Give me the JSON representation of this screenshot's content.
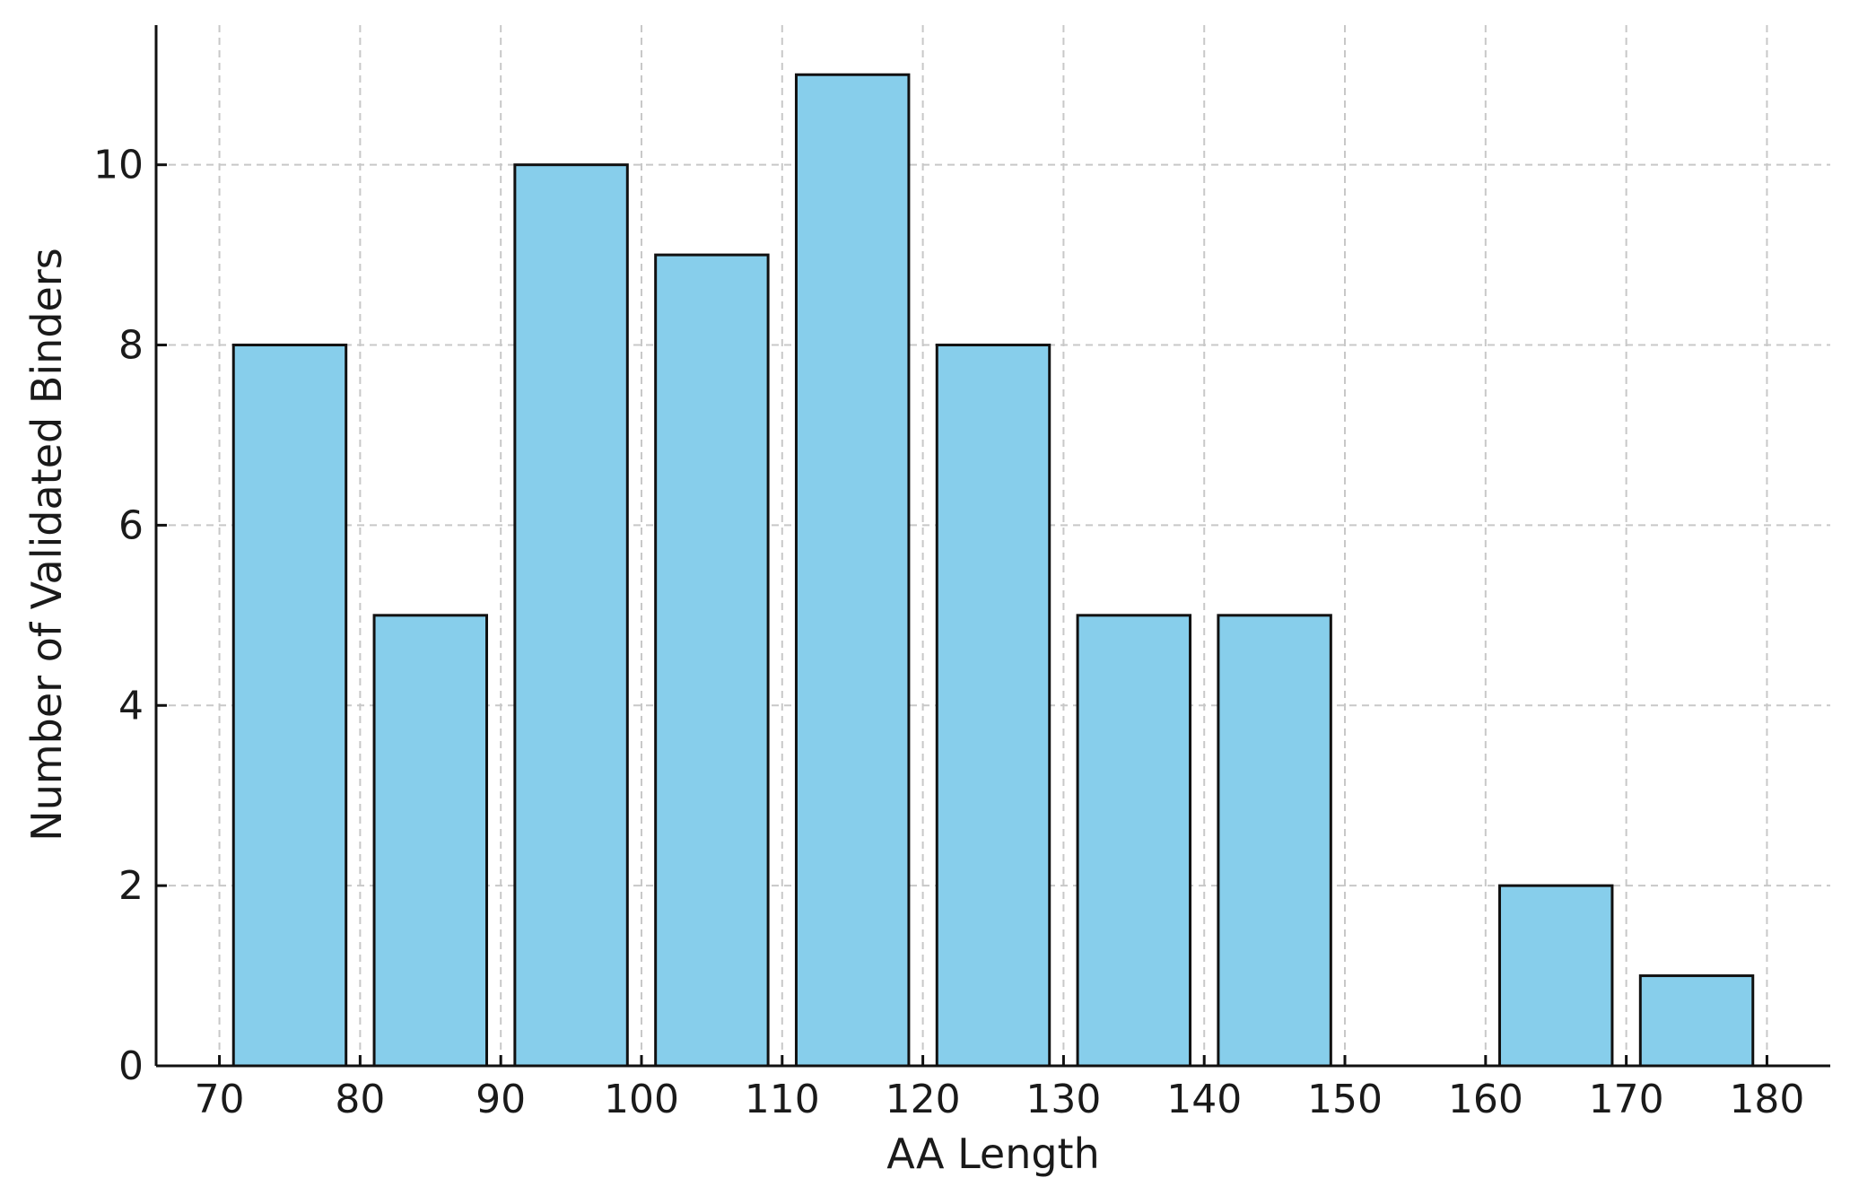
{
  "chart_data": {
    "type": "bar",
    "title": "",
    "xlabel": "AA Length",
    "ylabel": "Number of Validated Binders",
    "bins": [
      [
        70,
        80
      ],
      [
        80,
        90
      ],
      [
        90,
        100
      ],
      [
        100,
        110
      ],
      [
        110,
        120
      ],
      [
        120,
        130
      ],
      [
        130,
        140
      ],
      [
        140,
        150
      ],
      [
        150,
        160
      ],
      [
        160,
        170
      ],
      [
        170,
        180
      ]
    ],
    "values": [
      8,
      5,
      10,
      9,
      11,
      8,
      5,
      5,
      0,
      2,
      1
    ],
    "xlim": [
      65.5,
      184.5
    ],
    "ylim": [
      0,
      11.55
    ],
    "xticks": [
      70,
      80,
      90,
      100,
      110,
      120,
      130,
      140,
      150,
      160,
      170,
      180
    ],
    "yticks": [
      0,
      2,
      4,
      6,
      8,
      10
    ],
    "grid": true,
    "bar_color": "#87CEEB",
    "edge_color": "#111111"
  }
}
